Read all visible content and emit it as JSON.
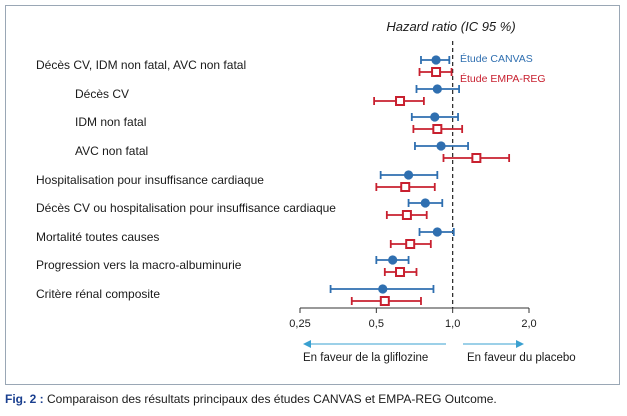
{
  "chart_data": {
    "type": "forest",
    "title": "Hazard ratio (IC 95 %)",
    "x_scale": "log",
    "xlim": [
      0.25,
      2.0
    ],
    "reference_line": 1.0,
    "x_ticks": [
      {
        "value": 0.25,
        "label": "0,25"
      },
      {
        "value": 0.5,
        "label": "0,5"
      },
      {
        "value": 1.0,
        "label": "1,0"
      },
      {
        "value": 2.0,
        "label": "2,0"
      }
    ],
    "legend": [
      {
        "name": "Étude CANVAS",
        "color": "#2f6fb0",
        "marker": "filled-circle"
      },
      {
        "name": "Étude EMPA-REG",
        "color": "#c8202f",
        "marker": "open-square"
      }
    ],
    "direction_labels": {
      "left": "En faveur de la gliflozine",
      "right": "En faveur du placebo"
    },
    "rows": [
      {
        "label": "Décès CV, IDM non fatal, AVC non fatal",
        "indent": false,
        "canvas": {
          "hr": 0.86,
          "low": 0.75,
          "high": 0.97
        },
        "empa": {
          "hr": 0.86,
          "low": 0.74,
          "high": 0.99
        }
      },
      {
        "label": "Décès CV",
        "indent": true,
        "canvas": {
          "hr": 0.87,
          "low": 0.72,
          "high": 1.06
        },
        "empa": {
          "hr": 0.62,
          "low": 0.49,
          "high": 0.77
        }
      },
      {
        "label": "IDM non fatal",
        "indent": true,
        "canvas": {
          "hr": 0.85,
          "low": 0.69,
          "high": 1.05
        },
        "empa": {
          "hr": 0.87,
          "low": 0.7,
          "high": 1.09
        }
      },
      {
        "label": "AVC non fatal",
        "indent": true,
        "canvas": {
          "hr": 0.9,
          "low": 0.71,
          "high": 1.15
        },
        "empa": {
          "hr": 1.24,
          "low": 0.92,
          "high": 1.67
        }
      },
      {
        "label": "Hospitalisation pour insuffisance cardiaque",
        "indent": false,
        "canvas": {
          "hr": 0.67,
          "low": 0.52,
          "high": 0.87
        },
        "empa": {
          "hr": 0.65,
          "low": 0.5,
          "high": 0.85
        }
      },
      {
        "label": "Décès CV ou hospitalisation pour insuffisance cardiaque",
        "indent": false,
        "canvas": {
          "hr": 0.78,
          "low": 0.67,
          "high": 0.91
        },
        "empa": {
          "hr": 0.66,
          "low": 0.55,
          "high": 0.79
        }
      },
      {
        "label": "Mortalité toutes causes",
        "indent": false,
        "canvas": {
          "hr": 0.87,
          "low": 0.74,
          "high": 1.01
        },
        "empa": {
          "hr": 0.68,
          "low": 0.57,
          "high": 0.82
        }
      },
      {
        "label": "Progression vers la macro-albuminurie",
        "indent": false,
        "canvas": {
          "hr": 0.58,
          "low": 0.5,
          "high": 0.67
        },
        "empa": {
          "hr": 0.62,
          "low": 0.54,
          "high": 0.72
        }
      },
      {
        "label": "Critère rénal composite",
        "indent": false,
        "canvas": {
          "hr": 0.53,
          "low": 0.33,
          "high": 0.84
        },
        "empa": {
          "hr": 0.54,
          "low": 0.4,
          "high": 0.75
        }
      }
    ]
  },
  "caption": {
    "prefix": "Fig. 2 :",
    "text": " Comparaison des résultats principaux des études CANVAS et EMPA-REG Outcome."
  }
}
